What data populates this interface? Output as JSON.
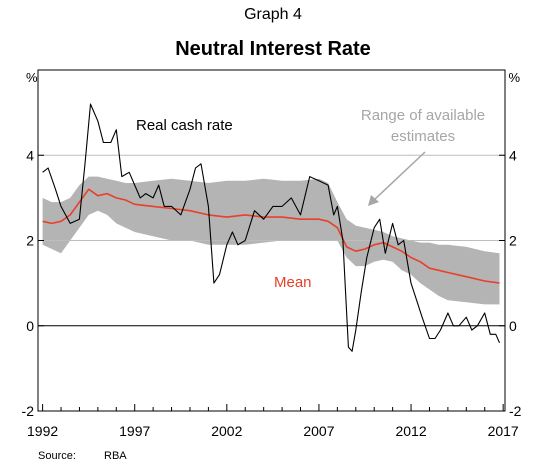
{
  "header": {
    "graph_label": "Graph 4",
    "title": "Neutral Interest Rate"
  },
  "source": {
    "label": "Source:",
    "value": "RBA"
  },
  "colors": {
    "range_band": "#b4b4b4",
    "mean_line": "#e8402b",
    "real_cash_line": "#000000",
    "annotation_grey": "#a6a6a6",
    "gridline": "#bdbdbd"
  },
  "chart_data": {
    "type": "line",
    "unit_left": "%",
    "unit_right": "%",
    "xlim": [
      1991.75,
      2017.1
    ],
    "ylim": [
      -2,
      6
    ],
    "y_ticks": [
      -2,
      0,
      2,
      4
    ],
    "y_tick_labels": [
      "-2",
      "0",
      "2",
      "4"
    ],
    "x_ticks": [
      1992,
      1997,
      2002,
      2007,
      2012,
      2017
    ],
    "x_tick_labels": [
      "1992",
      "1997",
      "2002",
      "2007",
      "2012",
      "2017"
    ],
    "grid": true,
    "annotations": {
      "real_cash": "Real cash rate",
      "mean": "Mean",
      "range_line1": "Range of available",
      "range_line2": "estimates"
    },
    "range_band": {
      "x": [
        1992,
        1992.5,
        1993,
        1993.5,
        1994,
        1994.5,
        1995,
        1995.5,
        1996,
        1996.5,
        1997,
        1998,
        1999,
        2000,
        2001,
        2002,
        2003,
        2004,
        2005,
        2006,
        2007,
        2007.5,
        2008,
        2008.5,
        2009,
        2009.5,
        2010,
        2010.5,
        2011,
        2011.5,
        2012,
        2012.5,
        2013,
        2013.5,
        2014,
        2015,
        2016,
        2016.8
      ],
      "lower": [
        1.9,
        1.8,
        1.7,
        2.0,
        2.3,
        2.6,
        2.7,
        2.6,
        2.4,
        2.3,
        2.2,
        2.1,
        2.0,
        2.0,
        1.9,
        1.9,
        1.9,
        1.95,
        2.0,
        2.0,
        2.0,
        2.0,
        2.0,
        1.6,
        1.4,
        1.4,
        1.5,
        1.55,
        1.5,
        1.3,
        1.2,
        1.0,
        0.85,
        0.7,
        0.6,
        0.55,
        0.5,
        0.5
      ],
      "upper": [
        3.0,
        2.9,
        2.9,
        3.0,
        3.3,
        3.5,
        3.5,
        3.45,
        3.4,
        3.35,
        3.35,
        3.4,
        3.45,
        3.4,
        3.35,
        3.4,
        3.4,
        3.45,
        3.4,
        3.4,
        3.45,
        3.35,
        2.9,
        2.5,
        2.35,
        2.3,
        2.25,
        2.2,
        2.1,
        2.05,
        2.0,
        1.95,
        1.95,
        1.9,
        1.9,
        1.85,
        1.75,
        1.7
      ]
    },
    "series": [
      {
        "name": "Mean",
        "x": [
          1992,
          1992.5,
          1993,
          1993.5,
          1994,
          1994.5,
          1995,
          1995.5,
          1996,
          1996.5,
          1997,
          1998,
          1999,
          2000,
          2001,
          2002,
          2003,
          2004,
          2005,
          2006,
          2007,
          2007.5,
          2008,
          2008.5,
          2009,
          2009.5,
          2010,
          2010.5,
          2011,
          2011.5,
          2012,
          2012.5,
          2013,
          2013.5,
          2014,
          2015,
          2016,
          2016.8
        ],
        "values": [
          2.45,
          2.4,
          2.45,
          2.6,
          2.9,
          3.2,
          3.05,
          3.1,
          3.0,
          2.95,
          2.85,
          2.8,
          2.75,
          2.7,
          2.6,
          2.55,
          2.6,
          2.55,
          2.55,
          2.5,
          2.5,
          2.45,
          2.3,
          1.85,
          1.75,
          1.8,
          1.9,
          1.95,
          1.85,
          1.75,
          1.6,
          1.5,
          1.35,
          1.3,
          1.25,
          1.15,
          1.05,
          1.0
        ]
      },
      {
        "name": "Real cash rate",
        "x": [
          1992,
          1992.3,
          1992.7,
          1993,
          1993.5,
          1994,
          1994.3,
          1994.6,
          1995,
          1995.3,
          1995.7,
          1996,
          1996.3,
          1996.7,
          1997,
          1997.3,
          1997.6,
          1998,
          1998.3,
          1998.6,
          1999,
          1999.5,
          2000,
          2000.3,
          2000.6,
          2001,
          2001.3,
          2001.6,
          2002,
          2002.3,
          2002.6,
          2003,
          2003.5,
          2004,
          2004.5,
          2005,
          2005.5,
          2006,
          2006.5,
          2007,
          2007.5,
          2007.8,
          2008,
          2008.3,
          2008.6,
          2008.8,
          2009,
          2009.3,
          2009.6,
          2010,
          2010.3,
          2010.6,
          2011,
          2011.3,
          2011.6,
          2012,
          2012.3,
          2012.6,
          2013,
          2013.3,
          2013.6,
          2014,
          2014.3,
          2014.6,
          2015,
          2015.3,
          2015.6,
          2016,
          2016.3,
          2016.6,
          2016.8
        ],
        "values": [
          3.6,
          3.7,
          3.2,
          2.8,
          2.4,
          2.5,
          3.8,
          5.2,
          4.8,
          4.3,
          4.3,
          4.6,
          3.5,
          3.6,
          3.3,
          3.0,
          3.1,
          3.0,
          3.3,
          2.8,
          2.8,
          2.6,
          3.2,
          3.7,
          3.8,
          2.8,
          1.0,
          1.2,
          1.9,
          2.2,
          1.9,
          2.0,
          2.7,
          2.5,
          2.8,
          2.8,
          3.0,
          2.6,
          3.5,
          3.4,
          3.3,
          2.6,
          2.8,
          2.0,
          -0.5,
          -0.6,
          -0.1,
          0.8,
          1.6,
          2.3,
          2.5,
          1.7,
          2.4,
          1.9,
          2.0,
          1.0,
          0.6,
          0.2,
          -0.3,
          -0.3,
          -0.1,
          0.3,
          0.0,
          0.0,
          0.2,
          -0.1,
          0.0,
          0.3,
          -0.2,
          -0.2,
          -0.4
        ]
      }
    ]
  }
}
